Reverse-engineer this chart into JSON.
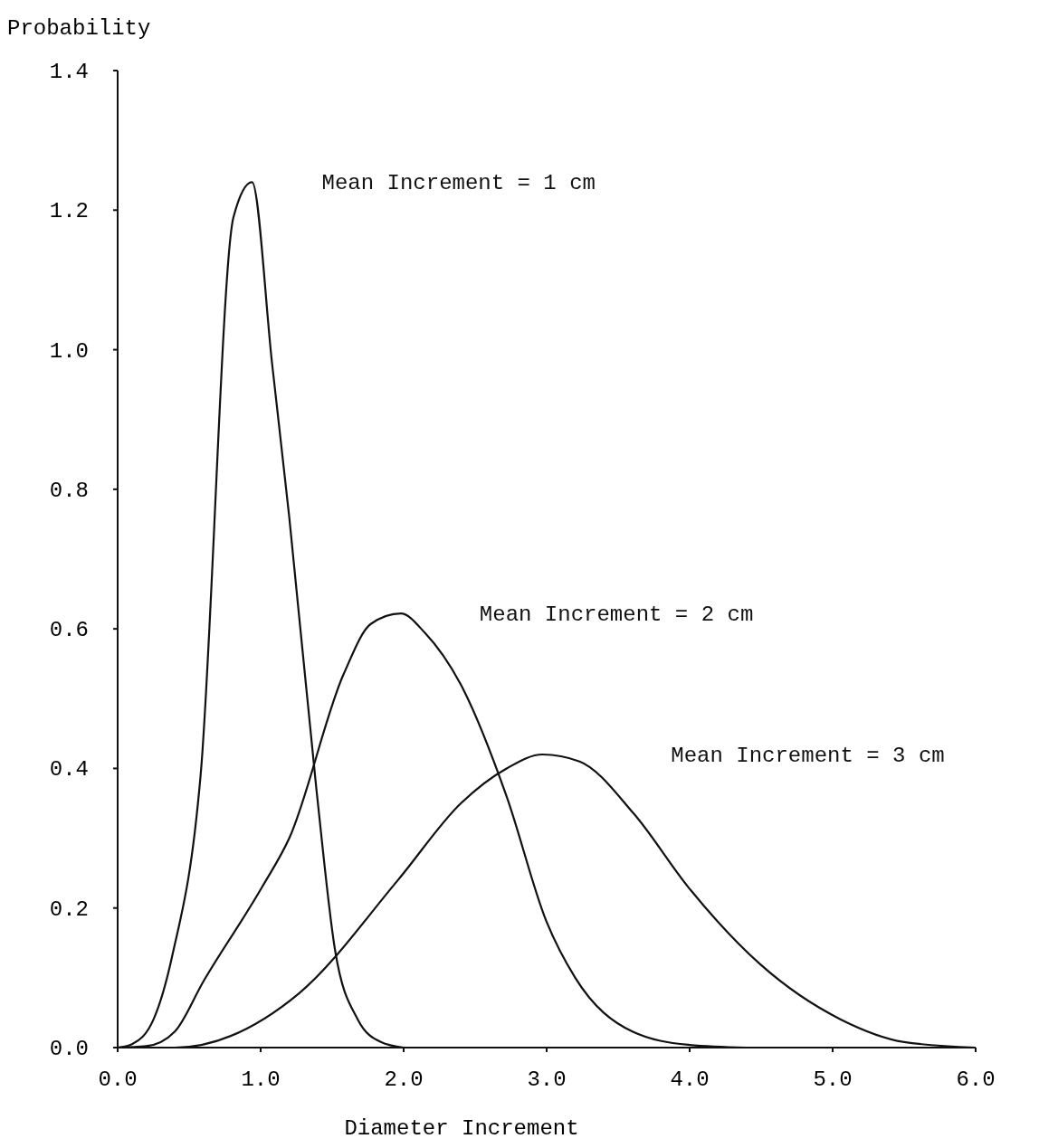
{
  "chart_data": {
    "type": "line",
    "xlabel": "Diameter Increment",
    "ylabel": "Probability",
    "xlim": [
      0,
      6
    ],
    "ylim": [
      0,
      1.4
    ],
    "xticks": [
      {
        "value": 0,
        "label": "0.0"
      },
      {
        "value": 1,
        "label": "1.0"
      },
      {
        "value": 2,
        "label": "2.0"
      },
      {
        "value": 3,
        "label": "3.0"
      },
      {
        "value": 4,
        "label": "4.0"
      },
      {
        "value": 5,
        "label": "5.0"
      },
      {
        "value": 6,
        "label": "6.0"
      }
    ],
    "yticks": [
      {
        "value": 0,
        "label": "0.0"
      },
      {
        "value": 0.2,
        "label": "0.2"
      },
      {
        "value": 0.4,
        "label": "0.4"
      },
      {
        "value": 0.6,
        "label": "0.6"
      },
      {
        "value": 0.8,
        "label": "0.8"
      },
      {
        "value": 1,
        "label": "1.0"
      },
      {
        "value": 1.2,
        "label": "1.2"
      },
      {
        "value": 1.4,
        "label": "1.4"
      }
    ],
    "grid": false,
    "marker": "none",
    "line_style": "solid",
    "series": [
      {
        "name": "Mean Increment = 1 cm",
        "color": "#111111",
        "x": [
          0,
          0.1,
          0.25,
          0.38,
          0.58,
          0.81,
          0.94,
          1.08,
          1.2,
          1.39,
          1.52,
          1.68,
          1.84,
          2.0
        ],
        "values": [
          0,
          0.005,
          0.04,
          0.13,
          0.39,
          1.19,
          1.24,
          0.98,
          0.76,
          0.37,
          0.14,
          0.04,
          0.008,
          0
        ]
      },
      {
        "name": "Mean Increment = 2 cm",
        "color": "#111111",
        "x": [
          0,
          0.2,
          0.4,
          0.6,
          1.01,
          1.2,
          1.58,
          1.77,
          1.98,
          2.15,
          2.4,
          2.72,
          3.0,
          3.2,
          3.6,
          3.99,
          4.4
        ],
        "values": [
          0,
          0.002,
          0.023,
          0.095,
          0.23,
          0.3,
          0.535,
          0.607,
          0.622,
          0.594,
          0.52,
          0.36,
          0.18,
          0.1,
          0.023,
          0.004,
          0
        ]
      },
      {
        "name": "Mean Increment = 3 cm",
        "color": "#111111",
        "x": [
          0,
          0.4,
          1.27,
          1.96,
          2.4,
          2.72,
          2.97,
          3.23,
          3.61,
          3.99,
          4.49,
          5.06,
          5.5,
          6.0
        ],
        "values": [
          0,
          0,
          0.078,
          0.24,
          0.35,
          0.4,
          0.42,
          0.41,
          0.335,
          0.23,
          0.12,
          0.04,
          0.008,
          0
        ]
      }
    ]
  }
}
